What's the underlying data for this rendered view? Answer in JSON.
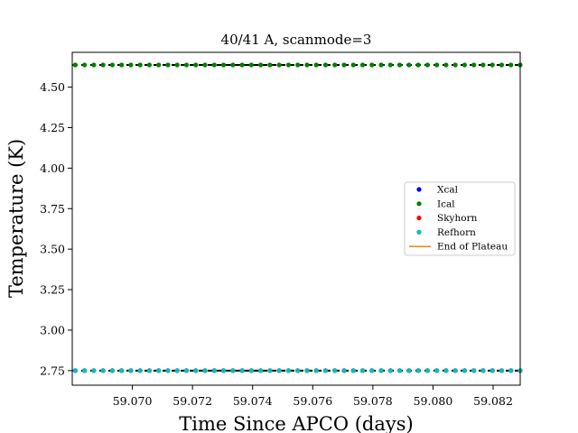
{
  "chart_data": {
    "type": "scatter",
    "title": "40/41 A, scanmode=3",
    "xlabel": "Time Since APCO (days)",
    "ylabel": "Temperature (K)",
    "xlim": [
      59.068,
      59.0829
    ],
    "ylim": [
      2.66,
      4.715
    ],
    "xticks": [
      "59.070",
      "59.072",
      "59.074",
      "59.076",
      "59.078",
      "59.080",
      "59.082"
    ],
    "xtick_values": [
      59.07,
      59.072,
      59.074,
      59.076,
      59.078,
      59.08,
      59.082
    ],
    "yticks": [
      "2.75",
      "3.00",
      "3.25",
      "3.50",
      "3.75",
      "4.00",
      "4.25",
      "4.50"
    ],
    "ytick_values": [
      2.75,
      3.0,
      3.25,
      3.5,
      3.75,
      4.0,
      4.25,
      4.5
    ],
    "grid": false,
    "legend_position": "center-right",
    "series": [
      {
        "name": "Xcal",
        "marker": "dot",
        "color": "#0000ff",
        "x_start": 59.0681,
        "x_end": 59.0829,
        "count": 49,
        "value": 2.75
      },
      {
        "name": "Ical",
        "marker": "dot",
        "color": "#008000",
        "x_start": 59.0681,
        "x_end": 59.0829,
        "count": 49,
        "value": 4.637
      },
      {
        "name": "Skyhorn",
        "marker": "dot",
        "color": "#ff0000",
        "x_start": 59.0681,
        "x_end": 59.0829,
        "count": 49,
        "value": 2.75
      },
      {
        "name": "Refhorn",
        "marker": "dot",
        "color": "#00bfbf",
        "x_start": 59.0681,
        "x_end": 59.0829,
        "count": 49,
        "value": 2.75
      },
      {
        "name": "End of Plateau",
        "marker": "line",
        "color": "#ff7f0e"
      }
    ],
    "reference_lines": [
      {
        "value": 2.75,
        "color": "#000000",
        "style": "dashed"
      },
      {
        "value": 4.637,
        "color": "#000000",
        "style": "dashed"
      }
    ]
  }
}
